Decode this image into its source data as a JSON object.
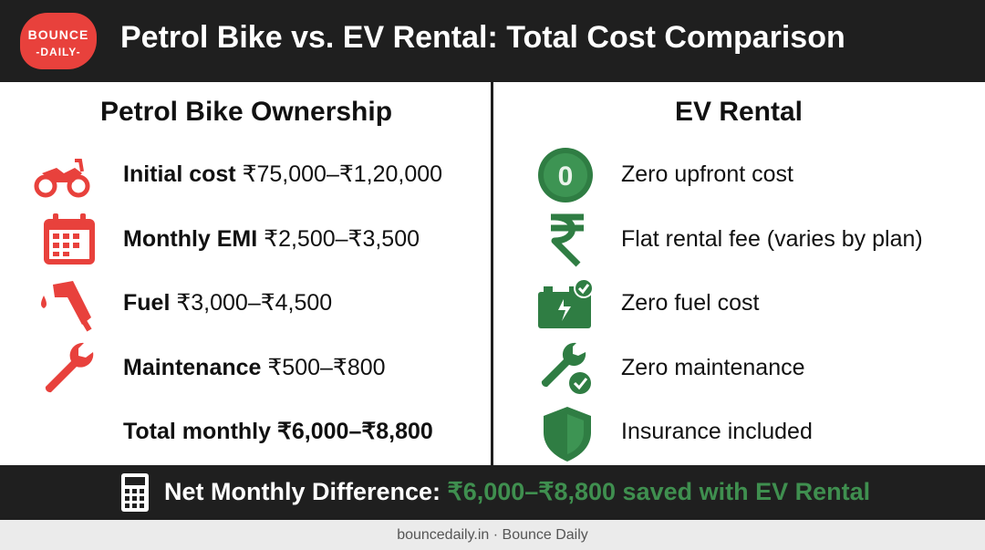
{
  "logo": {
    "line1": "BOUNCE",
    "line2": "-DAILY-"
  },
  "header": {
    "title": "Petrol Bike vs. EV Rental: Total Cost Comparison"
  },
  "left": {
    "title": "Petrol Bike Ownership",
    "items": [
      {
        "label": "Initial cost",
        "value": "₹75,000–₹1,20,000"
      },
      {
        "label": "Monthly EMI",
        "value": "₹2,500–₹3,500"
      },
      {
        "label": "Fuel",
        "value": "₹3,000–₹4,500"
      },
      {
        "label": "Maintenance",
        "value": "₹500–₹800"
      },
      {
        "label": "Total monthly",
        "value": "₹6,000–₹8,800"
      }
    ]
  },
  "right": {
    "title": "EV Rental",
    "badge": "0",
    "items": [
      "Zero upfront cost",
      "Flat rental fee (varies by plan)",
      "Zero fuel cost",
      "Zero maintenance",
      "Insurance included"
    ]
  },
  "summary": {
    "label": "Net Monthly Difference:",
    "highlight": "₹6,000–₹8,800 saved with EV Rental"
  },
  "footer": {
    "text": "bouncedaily.in · Bounce Daily"
  }
}
